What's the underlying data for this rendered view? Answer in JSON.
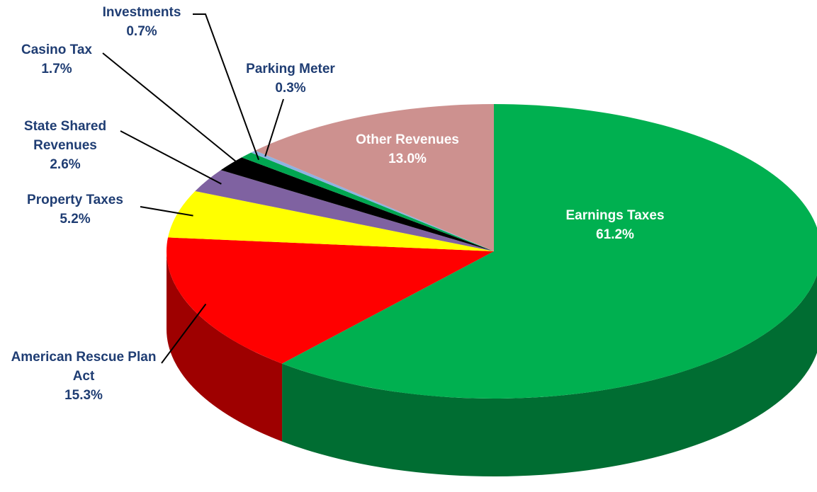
{
  "chart_data": {
    "type": "pie3d",
    "categories": [
      "Earnings Taxes",
      "American Rescue Plan Act",
      "Property Taxes",
      "State Shared Revenues",
      "Casino Tax",
      "Investments",
      "Parking Meter",
      "Other Revenues"
    ],
    "values": [
      61.2,
      15.3,
      5.2,
      2.6,
      1.7,
      0.7,
      0.3,
      13.0
    ],
    "value_labels": [
      "61.2%",
      "15.3%",
      "5.2%",
      "2.6%",
      "1.7%",
      "0.7%",
      "0.3%",
      "13.0%"
    ],
    "colors": [
      "#00b050",
      "#ff0000",
      "#ffff00",
      "#7f62a1",
      "#000000",
      "#00a651",
      "#8db3e2",
      "#cd918f"
    ]
  }
}
